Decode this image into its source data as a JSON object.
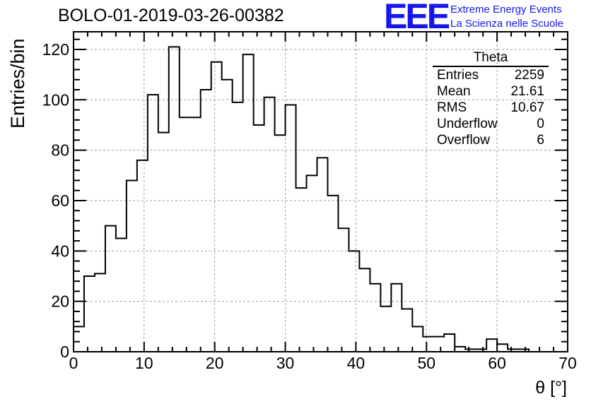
{
  "header": {
    "title": "BOLO-01-2019-03-26-00382",
    "logo_text": "EEE",
    "logo_line1": "Extreme Energy Events",
    "logo_line2": "La Scienza nelle Scuole",
    "logo_color": "#1515ee"
  },
  "stats": {
    "name": "Theta",
    "rows": [
      {
        "label": "Entries",
        "value": "2259"
      },
      {
        "label": "Mean",
        "value": "21.61"
      },
      {
        "label": "RMS",
        "value": "10.67"
      },
      {
        "label": "Underflow",
        "value": "0"
      },
      {
        "label": "Overflow",
        "value": "6"
      }
    ]
  },
  "chart_data": {
    "type": "histogram",
    "title": "BOLO-01-2019-03-26-00382",
    "xlabel": "θ [°]",
    "ylabel": "Entries/bin",
    "xlim": [
      0,
      70
    ],
    "ylim": [
      0,
      127
    ],
    "bin_width": 1.5,
    "x_ticks": [
      0,
      10,
      20,
      30,
      40,
      50,
      60,
      70
    ],
    "y_ticks": [
      0,
      20,
      40,
      60,
      80,
      100,
      120
    ],
    "grid": true,
    "values": [
      10,
      30,
      31,
      50,
      45,
      68,
      76,
      102,
      87,
      121,
      93,
      93,
      104,
      115,
      108,
      99,
      118,
      90,
      101,
      86,
      98,
      65,
      70,
      77,
      62,
      49,
      40,
      33,
      27,
      18,
      27,
      17,
      10,
      6,
      6,
      7,
      2,
      1,
      1,
      5,
      3,
      1,
      1,
      0,
      0,
      0,
      0
    ]
  }
}
